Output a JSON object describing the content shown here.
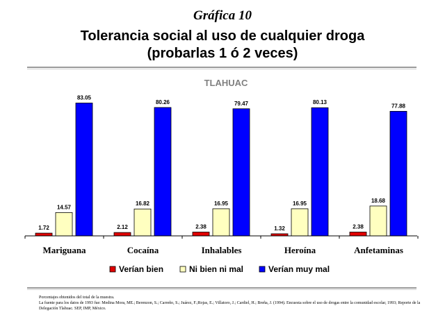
{
  "header": {
    "supertitle": "Gráfica 10",
    "title_line1": "Tolerancia social al uso de cualquier droga",
    "title_line2": "(probarlas 1 ó 2 veces)"
  },
  "chart_data": {
    "type": "bar",
    "title": "TLAHUAC",
    "categories": [
      "Mariguana",
      "Cocaína",
      "Inhalables",
      "Heroína",
      "Anfetaminas"
    ],
    "series": [
      {
        "name": "Verían bien",
        "color": "#e00000",
        "values": [
          1.72,
          2.12,
          2.38,
          1.32,
          2.38
        ]
      },
      {
        "name": "Ni bien ni mal",
        "color": "#ffffc0",
        "values": [
          14.57,
          16.82,
          16.95,
          16.95,
          18.68
        ]
      },
      {
        "name": "Verían muy mal",
        "color": "#0000ff",
        "values": [
          83.05,
          80.26,
          79.47,
          80.13,
          77.88
        ]
      }
    ],
    "ylim": [
      0,
      85
    ],
    "grid": false,
    "legend": "bottom"
  },
  "notes": {
    "line1": "Porcentajes obtenidos del total de la muestra.",
    "line2": "La fuente para los datos de 1993 fue: Medina Mora, ME.; Berenzon, S.; Carreño, S.; Juárez, F.;Rojas, E.; Villatoro, J.; Cardiel, H.; Breña, J. (1994). Encuesta sobre el uso de drogas entre la comunidad escolar, 1993; Reporte de la Delegación Tlahuac. SEP, IMP, México."
  }
}
